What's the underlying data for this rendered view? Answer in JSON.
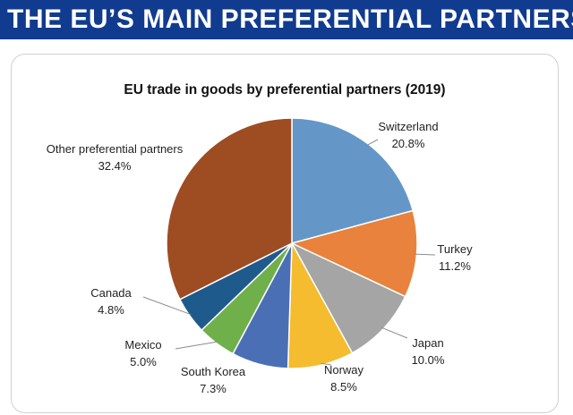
{
  "banner": {
    "title": "THE EU’S MAIN PREFERENTIAL PARTNERS"
  },
  "chart_data": {
    "type": "pie",
    "title": "EU trade in goods by preferential partners (2019)",
    "slices": [
      {
        "label": "Switzerland",
        "value": 20.8,
        "value_text": "20.8%",
        "color": "#6497c8"
      },
      {
        "label": "Turkey",
        "value": 11.2,
        "value_text": "11.2%",
        "color": "#e8823d"
      },
      {
        "label": "Japan",
        "value": 10.0,
        "value_text": "10.0%",
        "color": "#a5a5a5"
      },
      {
        "label": "Norway",
        "value": 8.5,
        "value_text": "8.5%",
        "color": "#f4bc2e"
      },
      {
        "label": "South Korea",
        "value": 7.3,
        "value_text": "7.3%",
        "color": "#4a6fb5"
      },
      {
        "label": "Mexico",
        "value": 5.0,
        "value_text": "5.0%",
        "color": "#6fb04a"
      },
      {
        "label": "Canada",
        "value": 4.8,
        "value_text": "4.8%",
        "color": "#1f5a8c"
      },
      {
        "label": "Other preferential partners",
        "value": 32.4,
        "value_text": "32.4%",
        "color": "#9e4c22"
      }
    ],
    "legend": "none",
    "data_labels": "outside with leader lines"
  }
}
